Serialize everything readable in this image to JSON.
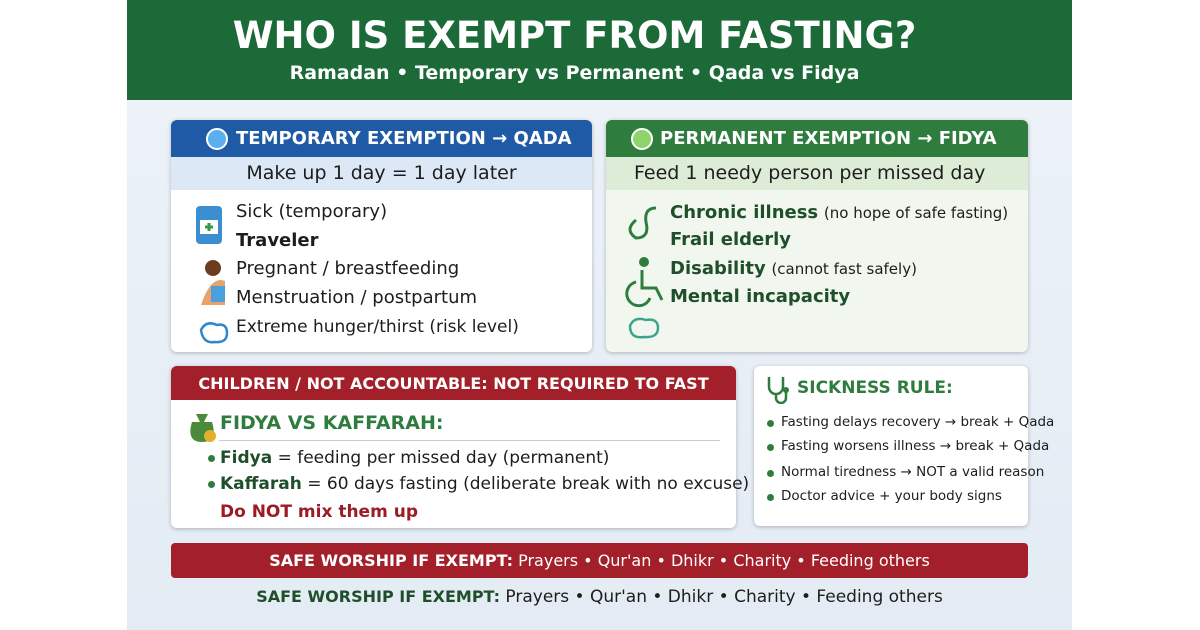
{
  "header": {
    "title": "WHO IS EXEMPT FROM FASTING?",
    "subtitle": "Ramadan • Temporary vs Permanent • Qada vs Fidya"
  },
  "temporary": {
    "title": "TEMPORARY EXEMPTION → QADA",
    "rule": "Make up 1 day = 1 day later",
    "items": [
      "Sick (temporary)",
      "Traveler",
      "Pregnant / breastfeeding",
      "Menstruation / postpartum",
      "Extreme hunger/thirst (risk level)"
    ]
  },
  "permanent": {
    "title": "PERMANENT EXEMPTION → FIDYA",
    "rule": "Feed 1 needy person per missed day",
    "items": [
      {
        "label": "Chronic illness",
        "note": "(no hope of safe fasting)"
      },
      {
        "label": "Frail elderly"
      },
      {
        "label": "Disability",
        "note": "(cannot fast safely)"
      },
      {
        "label": "Mental incapacity"
      }
    ]
  },
  "children": {
    "title": "CHILDREN / NOT ACCOUNTABLE: NOT REQUIRED TO FAST",
    "heading": "FIDYA VS KAFFARAH:",
    "items": [
      {
        "term": "Fidya",
        "definition": "= feeding per missed day (permanent)"
      },
      {
        "term": "Kaffarah",
        "definition": "= 60 days fasting (deliberate break with no excuse)"
      }
    ],
    "warning": "Do NOT mix them up"
  },
  "sickness": {
    "title": "SICKNESS RULE:",
    "items": [
      "Fasting delays recovery → break + Qada",
      "Fasting worsens illness → break + Qada",
      "Normal tiredness → NOT a valid reason",
      "Doctor advice + your body signs"
    ]
  },
  "banner": {
    "lead": "SAFE WORSHIP IF EXEMPT:",
    "text": "Prayers • Qur'an • Dhikr • Charity • Feeding others"
  },
  "footer": {
    "lead": "SAFE WORSHIP IF EXEMPT:",
    "text": "Prayers • Qur'an • Dhikr • Charity • Feeding others"
  }
}
